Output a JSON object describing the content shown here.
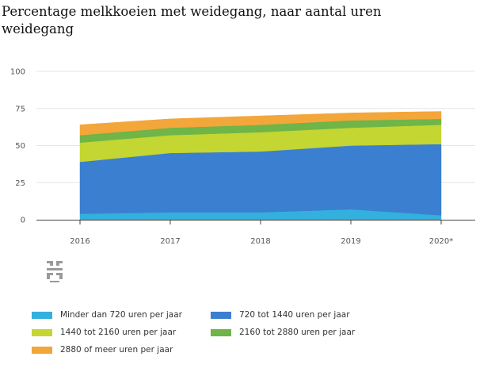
{
  "title": "Percentage melkkoeien met weidegang, naar aantal uren weidegang",
  "colors": {
    "grid": "#e6e6e6",
    "axis": "#444444"
  },
  "logo_icon": "cbs-logo-icon",
  "chart_data": {
    "type": "area",
    "stacked": true,
    "title": "Percentage melkkoeien met weidegang, naar aantal uren weidegang",
    "categories": [
      "2016",
      "2017",
      "2018",
      "2019",
      "2020*"
    ],
    "ylim": [
      0,
      100
    ],
    "yticks": [
      "0",
      "25",
      "50",
      "75",
      "100"
    ],
    "grid": true,
    "legend_position": "bottom",
    "series": [
      {
        "name": "Minder dan 720 uren per jaar",
        "color": "#33b0dd",
        "values": [
          4,
          5,
          5,
          7,
          3
        ]
      },
      {
        "name": "720 tot 1440 uren per jaar",
        "color": "#3b7fd0",
        "values": [
          35,
          40,
          41,
          43,
          48
        ]
      },
      {
        "name": "1440 tot 2160 uren per jaar",
        "color": "#c3d632",
        "values": [
          13,
          12,
          13,
          12,
          13
        ]
      },
      {
        "name": "2160 tot 2880 uren per jaar",
        "color": "#6fb548",
        "values": [
          5,
          5,
          5,
          5,
          4
        ]
      },
      {
        "name": "2880 of meer uren per jaar",
        "color": "#f3a63a",
        "values": [
          7,
          6,
          6,
          5,
          5
        ]
      }
    ]
  }
}
